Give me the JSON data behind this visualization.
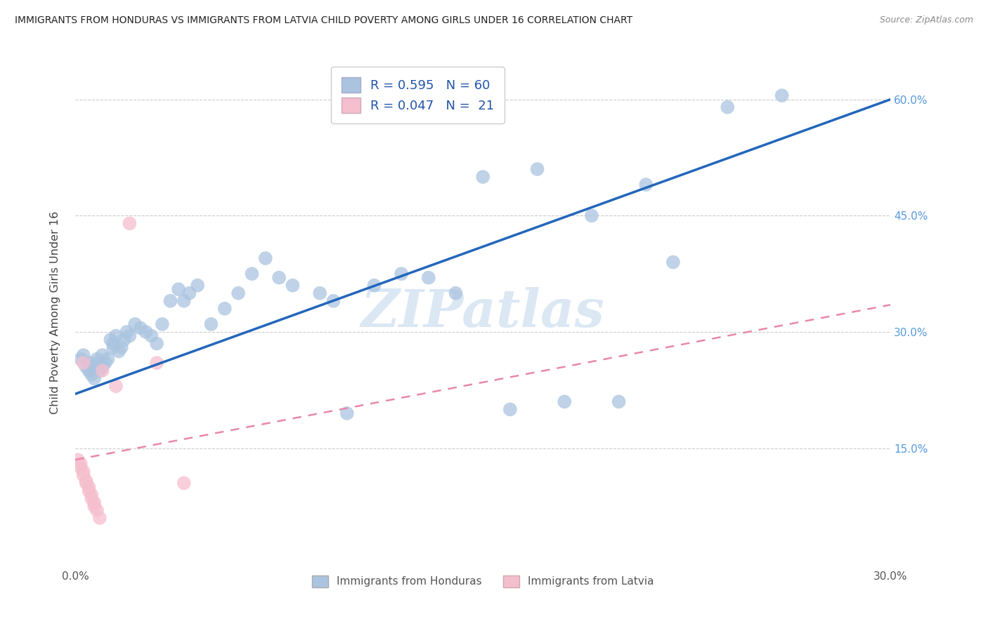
{
  "title": "IMMIGRANTS FROM HONDURAS VS IMMIGRANTS FROM LATVIA CHILD POVERTY AMONG GIRLS UNDER 16 CORRELATION CHART",
  "source": "Source: ZipAtlas.com",
  "ylabel": "Child Poverty Among Girls Under 16",
  "xlim": [
    0.0,
    0.3
  ],
  "ylim": [
    0.0,
    0.65
  ],
  "xtick_positions": [
    0.0,
    0.05,
    0.1,
    0.15,
    0.2,
    0.25,
    0.3
  ],
  "xticklabels": [
    "0.0%",
    "",
    "",
    "",
    "",
    "",
    "30.0%"
  ],
  "yticks_right": [
    0.15,
    0.3,
    0.45,
    0.6
  ],
  "ytick_right_labels": [
    "15.0%",
    "30.0%",
    "45.0%",
    "60.0%"
  ],
  "honduras_R": 0.595,
  "honduras_N": 60,
  "latvia_R": 0.047,
  "latvia_N": 21,
  "honduras_color": "#aac4e0",
  "honduras_line_color": "#2266bb",
  "latvia_color": "#f5bece",
  "latvia_line_color": "#e888a8",
  "watermark": "ZIPatlas",
  "honduras_line_x0": 0.0,
  "honduras_line_y0": 0.22,
  "honduras_line_x1": 0.3,
  "honduras_line_y1": 0.6,
  "latvia_line_x0": 0.0,
  "latvia_line_y0": 0.135,
  "latvia_line_x1": 0.3,
  "latvia_line_y1": 0.335,
  "honduras_x": [
    0.002,
    0.003,
    0.004,
    0.005,
    0.005,
    0.006,
    0.006,
    0.007,
    0.007,
    0.008,
    0.008,
    0.009,
    0.01,
    0.01,
    0.011,
    0.012,
    0.013,
    0.014,
    0.014,
    0.015,
    0.016,
    0.017,
    0.018,
    0.019,
    0.02,
    0.022,
    0.024,
    0.026,
    0.028,
    0.03,
    0.032,
    0.035,
    0.038,
    0.04,
    0.042,
    0.045,
    0.05,
    0.055,
    0.06,
    0.065,
    0.07,
    0.075,
    0.08,
    0.09,
    0.095,
    0.1,
    0.11,
    0.12,
    0.13,
    0.14,
    0.15,
    0.16,
    0.17,
    0.18,
    0.19,
    0.2,
    0.21,
    0.22,
    0.24,
    0.26
  ],
  "honduras_y": [
    0.265,
    0.27,
    0.255,
    0.25,
    0.26,
    0.25,
    0.245,
    0.24,
    0.255,
    0.265,
    0.26,
    0.25,
    0.27,
    0.255,
    0.26,
    0.265,
    0.29,
    0.285,
    0.28,
    0.295,
    0.275,
    0.28,
    0.29,
    0.3,
    0.295,
    0.31,
    0.305,
    0.3,
    0.295,
    0.285,
    0.31,
    0.34,
    0.355,
    0.34,
    0.35,
    0.36,
    0.31,
    0.33,
    0.35,
    0.375,
    0.395,
    0.37,
    0.36,
    0.35,
    0.34,
    0.195,
    0.36,
    0.375,
    0.37,
    0.35,
    0.5,
    0.2,
    0.51,
    0.21,
    0.45,
    0.21,
    0.49,
    0.39,
    0.59,
    0.605
  ],
  "latvia_x": [
    0.001,
    0.002,
    0.002,
    0.003,
    0.003,
    0.003,
    0.004,
    0.004,
    0.005,
    0.005,
    0.006,
    0.006,
    0.007,
    0.007,
    0.008,
    0.009,
    0.01,
    0.015,
    0.02,
    0.03,
    0.04
  ],
  "latvia_y": [
    0.135,
    0.13,
    0.125,
    0.12,
    0.115,
    0.26,
    0.108,
    0.105,
    0.1,
    0.095,
    0.09,
    0.085,
    0.08,
    0.075,
    0.07,
    0.06,
    0.25,
    0.23,
    0.44,
    0.26,
    0.105
  ]
}
